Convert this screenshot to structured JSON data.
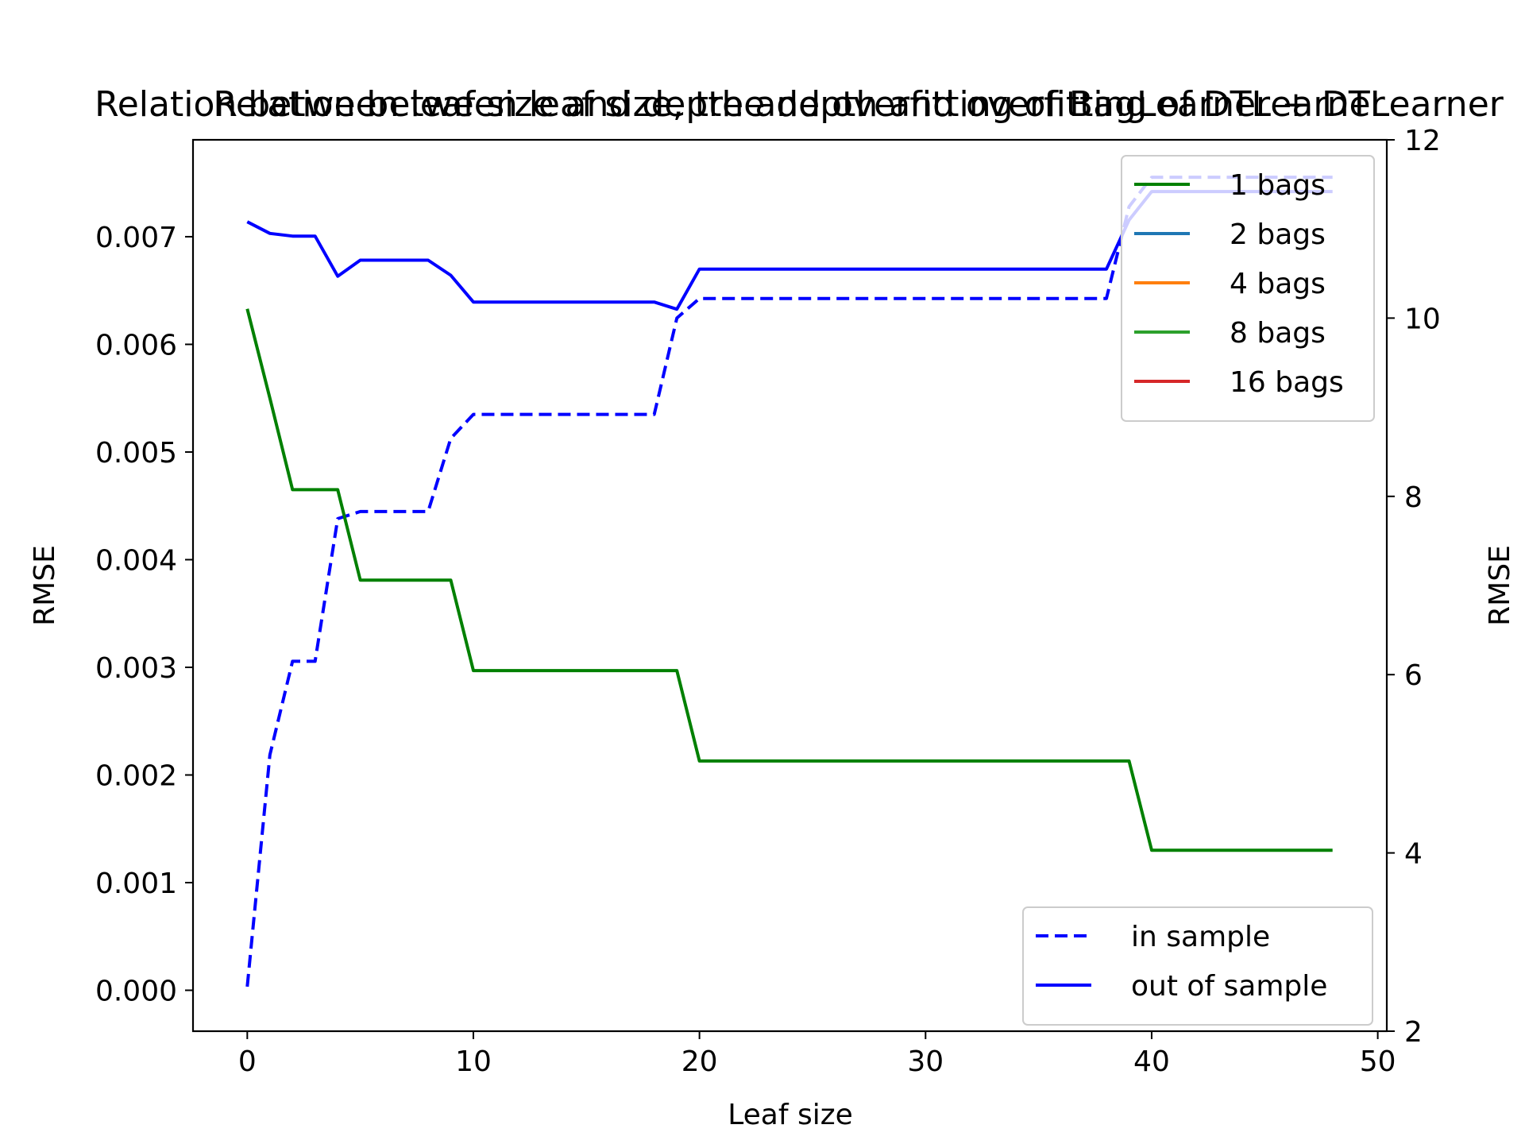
{
  "chart_data": [
    {
      "type": "line",
      "title": "Relation between leaf size and depth and overfitting of BagLearner + DTLearner",
      "xlabel": "Leaf size",
      "ylabel": "RMSE",
      "xlim": [
        -2.4,
        50.4
      ],
      "ylim": [
        -0.00038,
        0.0079
      ],
      "xticks": [
        0,
        10,
        20,
        30,
        40,
        50
      ],
      "yticks": [
        0.0,
        0.001,
        0.002,
        0.003,
        0.004,
        0.005,
        0.006,
        0.007
      ],
      "ytick_labels": [
        "0.000",
        "0.001",
        "0.002",
        "0.003",
        "0.004",
        "0.005",
        "0.006",
        "0.007"
      ],
      "legend_placement": "upper right",
      "series": [
        {
          "name": "1 bags",
          "color": "#008000",
          "style": "solid",
          "x": [
            0,
            1,
            2,
            3,
            4,
            5,
            6,
            7,
            8,
            9,
            10,
            11,
            12,
            13,
            14,
            15,
            16,
            17,
            18,
            19,
            20,
            21,
            22,
            23,
            24,
            25,
            26,
            27,
            28,
            29,
            30,
            31,
            32,
            33,
            34,
            35,
            36,
            37,
            38,
            39,
            40,
            41,
            42,
            43,
            44,
            45,
            46,
            47,
            48
          ],
          "y": [
            0.00633,
            0.0055,
            0.00465,
            0.00465,
            0.00465,
            0.00381,
            0.00381,
            0.00381,
            0.00381,
            0.00381,
            0.00297,
            0.00297,
            0.00297,
            0.00297,
            0.00297,
            0.00297,
            0.00297,
            0.00297,
            0.00297,
            0.00297,
            0.00213,
            0.00213,
            0.00213,
            0.00213,
            0.00213,
            0.00213,
            0.00213,
            0.00213,
            0.00213,
            0.00213,
            0.00213,
            0.00213,
            0.00213,
            0.00213,
            0.00213,
            0.00213,
            0.00213,
            0.00213,
            0.00213,
            0.00213,
            0.0013,
            0.0013,
            0.0013,
            0.0013,
            0.0013,
            0.0013,
            0.0013,
            0.0013,
            0.0013
          ]
        },
        {
          "name": "2 bags",
          "color": "#1f77b4",
          "style": "solid",
          "x": [],
          "y": []
        },
        {
          "name": "4 bags",
          "color": "#ff7f0e",
          "style": "solid",
          "x": [],
          "y": []
        },
        {
          "name": "8 bags",
          "color": "#2ca02c",
          "style": "solid",
          "x": [],
          "y": []
        },
        {
          "name": "16 bags",
          "color": "#d62728",
          "style": "solid",
          "x": [],
          "y": []
        }
      ]
    },
    {
      "type": "line",
      "title": "Relation between leaf size, tree depth and overfitting of DTLearner",
      "xlabel": "Leaf size",
      "ylabel": "RMSE",
      "xlim": [
        -2.4,
        50.4
      ],
      "ylim": [
        2,
        12
      ],
      "xticks": [
        0,
        10,
        20,
        30,
        40,
        50
      ],
      "yticks": [
        2,
        4,
        6,
        8,
        10,
        12
      ],
      "legend_placement": "lower right",
      "series": [
        {
          "name": "in sample",
          "color": "#0000ff",
          "style": "dashed",
          "x": [
            0,
            1,
            2,
            3,
            4,
            5,
            6,
            7,
            8,
            9,
            10,
            11,
            12,
            13,
            14,
            15,
            16,
            17,
            18,
            19,
            20,
            21,
            22,
            23,
            24,
            25,
            26,
            27,
            28,
            29,
            30,
            31,
            32,
            33,
            34,
            35,
            36,
            37,
            38,
            39,
            40,
            41,
            42,
            43,
            44,
            45,
            46,
            47,
            48
          ],
          "y": [
            2.5,
            5.1,
            6.15,
            6.15,
            7.75,
            7.83,
            7.83,
            7.83,
            7.83,
            8.65,
            8.92,
            8.92,
            8.92,
            8.92,
            8.92,
            8.92,
            8.92,
            8.92,
            8.92,
            10.0,
            10.22,
            10.22,
            10.22,
            10.22,
            10.22,
            10.22,
            10.22,
            10.22,
            10.22,
            10.22,
            10.22,
            10.22,
            10.22,
            10.22,
            10.22,
            10.22,
            10.22,
            10.22,
            10.22,
            11.25,
            11.58,
            11.58,
            11.58,
            11.58,
            11.58,
            11.58,
            11.58,
            11.58,
            11.58
          ]
        },
        {
          "name": "out of sample",
          "color": "#0000ff",
          "style": "solid",
          "x": [
            0,
            1,
            2,
            3,
            4,
            5,
            6,
            7,
            8,
            9,
            10,
            11,
            12,
            13,
            14,
            15,
            16,
            17,
            18,
            19,
            20,
            21,
            22,
            23,
            24,
            25,
            26,
            27,
            28,
            29,
            30,
            31,
            32,
            33,
            34,
            35,
            36,
            37,
            38,
            39,
            40,
            41,
            42,
            43,
            44,
            45,
            46,
            47,
            48
          ],
          "y": [
            11.08,
            10.95,
            10.92,
            10.92,
            10.47,
            10.65,
            10.65,
            10.65,
            10.65,
            10.48,
            10.18,
            10.18,
            10.18,
            10.18,
            10.18,
            10.18,
            10.18,
            10.18,
            10.18,
            10.1,
            10.55,
            10.55,
            10.55,
            10.55,
            10.55,
            10.55,
            10.55,
            10.55,
            10.55,
            10.55,
            10.55,
            10.55,
            10.55,
            10.55,
            10.55,
            10.55,
            10.55,
            10.55,
            10.55,
            11.1,
            11.42,
            11.42,
            11.42,
            11.42,
            11.42,
            11.42,
            11.42,
            11.42,
            11.42
          ]
        }
      ]
    }
  ]
}
